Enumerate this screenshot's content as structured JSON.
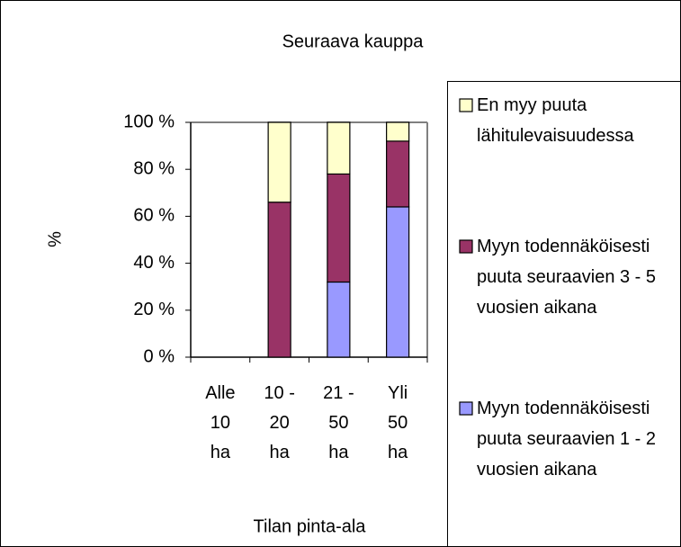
{
  "chart_data": {
    "type": "stacked_bar",
    "title": "Seuraava kauppa",
    "xlabel": "Tilan pinta-ala",
    "ylabel": "%",
    "categories": [
      "Alle 10 ha",
      "10 - 20 ha",
      "21 - 50 ha",
      "Yli 50 ha"
    ],
    "series": [
      {
        "name": "Myyn todennäköisesti puuta seuraavien 1 - 2 vuosien aikana",
        "color": "#9999ff",
        "values": [
          0,
          0,
          32,
          64
        ]
      },
      {
        "name": "Myyn todennäköisesti puuta seuraavien 3 - 5 vuosien aikana",
        "color": "#993366",
        "values": [
          0,
          66,
          46,
          28
        ]
      },
      {
        "name": "En myy puuta lähitulevaisuudessa",
        "color": "#ffffcc",
        "values": [
          0,
          34,
          22,
          8
        ]
      }
    ],
    "ylim": [
      0,
      100
    ],
    "yticks": [
      {
        "value": 0,
        "label": "0 %"
      },
      {
        "value": 20,
        "label": "20 %"
      },
      {
        "value": 40,
        "label": "40 %"
      },
      {
        "value": 60,
        "label": "60 %"
      },
      {
        "value": 80,
        "label": "80 %"
      },
      {
        "value": 100,
        "label": "100 %"
      }
    ],
    "grid": false,
    "legend": "right"
  }
}
